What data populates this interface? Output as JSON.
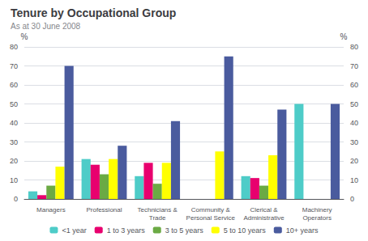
{
  "chart_data": {
    "type": "bar",
    "title": "Tenure by Occupational Group",
    "subtitle": "As at 30 June 2008",
    "categories": [
      "Managers",
      "Professional",
      "Technicians &\nTrade",
      "Community &\nPersonal Service",
      "Clerical &\nAdministrative",
      "Machinery\nOperators"
    ],
    "series": [
      {
        "name": "<1 year",
        "color": "#4ECCC8",
        "values": [
          4,
          21,
          12,
          0,
          12,
          50
        ]
      },
      {
        "name": "1 to 3 years",
        "color": "#E8006E",
        "values": [
          2,
          18,
          19,
          0,
          11,
          0
        ]
      },
      {
        "name": "3 to 5 years",
        "color": "#6BAA44",
        "values": [
          7,
          13,
          8,
          0,
          7,
          0
        ]
      },
      {
        "name": "5 to 10 years",
        "color": "#FFFF00",
        "values": [
          17,
          21,
          19,
          25,
          23,
          0
        ]
      },
      {
        "name": "10+ years",
        "color": "#4A5B9E",
        "values": [
          70,
          28,
          41,
          75,
          47,
          50
        ]
      }
    ],
    "ylabel": "%",
    "ylim": [
      0,
      80
    ],
    "yticks": [
      0,
      10,
      20,
      30,
      40,
      50,
      60,
      70,
      80
    ],
    "y2label": "%",
    "y2lim": [
      0,
      80
    ],
    "y2ticks": [
      0,
      10,
      20,
      30,
      40,
      50,
      60,
      70,
      80
    ],
    "grid": true,
    "legend": "bottom"
  }
}
